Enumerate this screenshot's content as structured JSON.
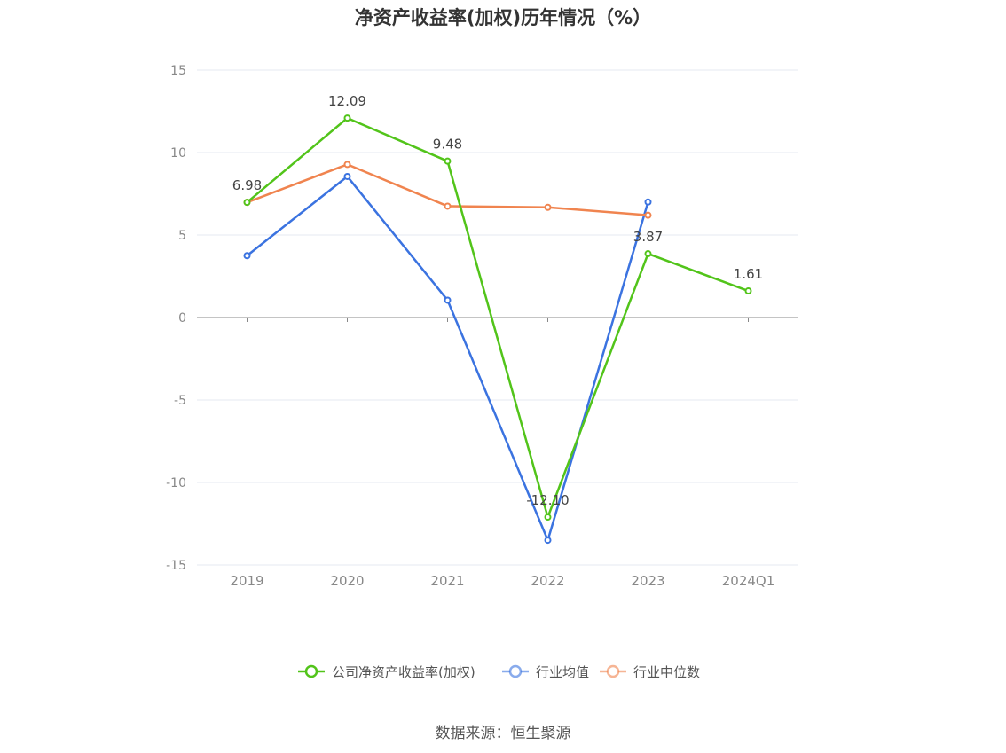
{
  "title": "净资产收益率(加权)历年情况（%）",
  "source": "数据来源：恒生聚源",
  "chart_data": {
    "type": "line",
    "categories": [
      "2019",
      "2020",
      "2021",
      "2022",
      "2023",
      "2024Q1"
    ],
    "ylim": [
      -15,
      15
    ],
    "yticks": [
      15,
      10,
      5,
      0,
      -5,
      -10,
      -15
    ],
    "grid": true,
    "legend_position": "bottom",
    "series": [
      {
        "name": "公司净资产收益率(加权)",
        "color": "#52c41a",
        "values": [
          6.98,
          12.09,
          9.48,
          -12.1,
          3.87,
          1.61
        ],
        "labels": [
          "6.98",
          "12.09",
          "9.48",
          "-12.10",
          "3.87",
          "1.61"
        ]
      },
      {
        "name": "行业均值",
        "color": "#3b73e0",
        "values": [
          3.75,
          8.55,
          1.05,
          -13.5,
          7.0,
          null
        ]
      },
      {
        "name": "行业中位数",
        "color": "#f0844f",
        "values": [
          6.98,
          9.28,
          6.75,
          6.68,
          6.2,
          null
        ]
      }
    ]
  }
}
